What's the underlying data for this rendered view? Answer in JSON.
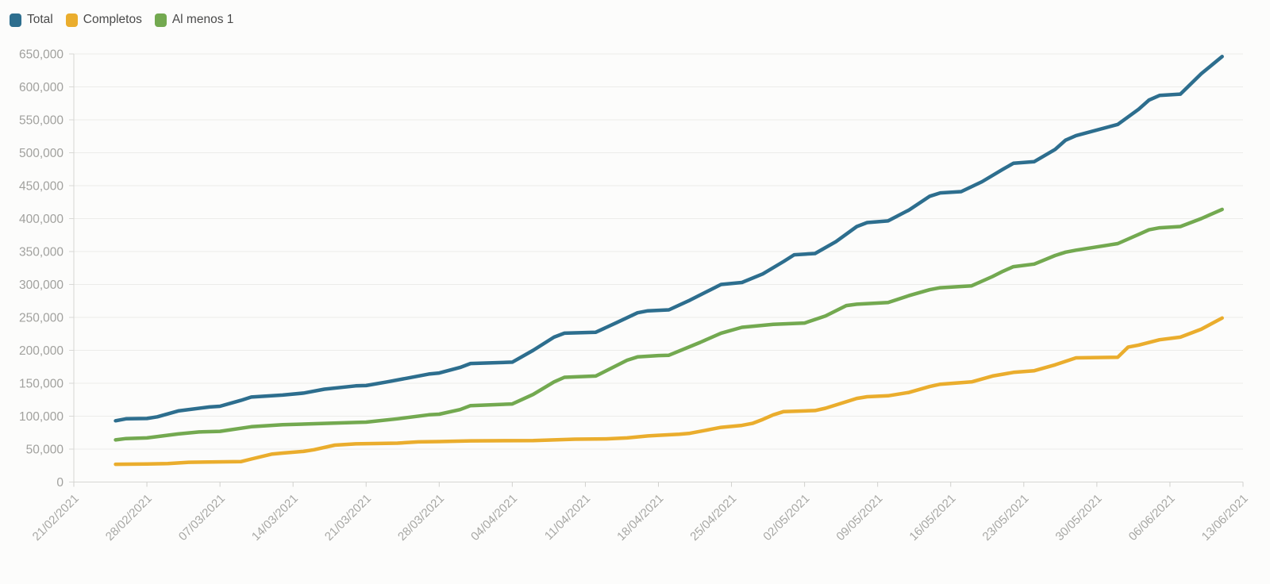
{
  "chart_data": {
    "type": "line",
    "title": "",
    "legend_position": "top-left",
    "background_color": "#fcfcfb",
    "grid": "horizontal",
    "x_axis": {
      "start_date": "21/02/2021",
      "end_date": "13/06/2021",
      "tick_interval_days": 7,
      "tick_labels": [
        "21/02/2021",
        "28/02/2021",
        "07/03/2021",
        "14/03/2021",
        "21/03/2021",
        "28/03/2021",
        "04/04/2021",
        "11/04/2021",
        "18/04/2021",
        "25/04/2021",
        "02/05/2021",
        "09/05/2021",
        "16/05/2021",
        "23/05/2021",
        "30/05/2021",
        "06/06/2021",
        "13/06/2021"
      ]
    },
    "y_axis": {
      "min": 0,
      "max": 650000,
      "step": 50000,
      "label_format": "#,###"
    },
    "day_zero_date": "25/02/2021",
    "series": [
      {
        "name": "Total",
        "color": "#2d6e8e",
        "points": [
          [
            0,
            93000
          ],
          [
            1,
            96000
          ],
          [
            3,
            96500
          ],
          [
            4,
            99000
          ],
          [
            6,
            108000
          ],
          [
            9,
            114000
          ],
          [
            10,
            115000
          ],
          [
            12,
            124000
          ],
          [
            13,
            129000
          ],
          [
            16,
            132000
          ],
          [
            18,
            135000
          ],
          [
            20,
            141000
          ],
          [
            23,
            146000
          ],
          [
            24,
            146500
          ],
          [
            26,
            152000
          ],
          [
            28,
            158000
          ],
          [
            30,
            164000
          ],
          [
            31,
            165500
          ],
          [
            33,
            174000
          ],
          [
            34,
            180000
          ],
          [
            38,
            182000
          ],
          [
            40,
            200000
          ],
          [
            42,
            220000
          ],
          [
            43,
            226000
          ],
          [
            46,
            227500
          ],
          [
            48,
            242000
          ],
          [
            50,
            257000
          ],
          [
            51,
            260000
          ],
          [
            53,
            261500
          ],
          [
            55,
            276000
          ],
          [
            57,
            292000
          ],
          [
            58,
            300000
          ],
          [
            60,
            303000
          ],
          [
            62,
            316000
          ],
          [
            64,
            335000
          ],
          [
            65,
            345000
          ],
          [
            67,
            347000
          ],
          [
            69,
            365000
          ],
          [
            71,
            388000
          ],
          [
            72,
            394000
          ],
          [
            74,
            396500
          ],
          [
            76,
            413000
          ],
          [
            78,
            434000
          ],
          [
            79,
            439000
          ],
          [
            81,
            441000
          ],
          [
            83,
            456000
          ],
          [
            85,
            475000
          ],
          [
            86,
            484000
          ],
          [
            88,
            486500
          ],
          [
            90,
            505000
          ],
          [
            91,
            519000
          ],
          [
            92,
            526000
          ],
          [
            96,
            543000
          ],
          [
            98,
            566000
          ],
          [
            99,
            580000
          ],
          [
            100,
            587000
          ],
          [
            102,
            589000
          ],
          [
            104,
            620000
          ],
          [
            106,
            646000
          ]
        ]
      },
      {
        "name": "Completos",
        "color": "#eaad2d",
        "points": [
          [
            0,
            27000
          ],
          [
            3,
            27500
          ],
          [
            5,
            28000
          ],
          [
            7,
            30000
          ],
          [
            12,
            31000
          ],
          [
            13,
            35000
          ],
          [
            15,
            42500
          ],
          [
            16,
            44000
          ],
          [
            18,
            46500
          ],
          [
            19,
            49000
          ],
          [
            21,
            56000
          ],
          [
            23,
            58000
          ],
          [
            27,
            59000
          ],
          [
            29,
            61000
          ],
          [
            31,
            61500
          ],
          [
            34,
            62500
          ],
          [
            40,
            63000
          ],
          [
            42,
            64000
          ],
          [
            44,
            65000
          ],
          [
            47,
            65500
          ],
          [
            49,
            67000
          ],
          [
            51,
            70000
          ],
          [
            52,
            71000
          ],
          [
            54,
            72500
          ],
          [
            55,
            74000
          ],
          [
            57,
            80000
          ],
          [
            58,
            83000
          ],
          [
            60,
            86000
          ],
          [
            61,
            89000
          ],
          [
            62,
            95000
          ],
          [
            63,
            102000
          ],
          [
            64,
            107000
          ],
          [
            66,
            108000
          ],
          [
            67,
            108500
          ],
          [
            68,
            112000
          ],
          [
            69,
            117000
          ],
          [
            71,
            127000
          ],
          [
            72,
            129500
          ],
          [
            74,
            131000
          ],
          [
            76,
            136000
          ],
          [
            78,
            145000
          ],
          [
            79,
            148500
          ],
          [
            82,
            152000
          ],
          [
            84,
            161000
          ],
          [
            86,
            166500
          ],
          [
            88,
            169000
          ],
          [
            90,
            178000
          ],
          [
            92,
            188500
          ],
          [
            96,
            189500
          ],
          [
            97,
            205000
          ],
          [
            98,
            208000
          ],
          [
            100,
            216000
          ],
          [
            102,
            220000
          ],
          [
            104,
            232000
          ],
          [
            106,
            249000
          ]
        ]
      },
      {
        "name": "Al menos 1",
        "color": "#73a950",
        "points": [
          [
            0,
            64000
          ],
          [
            1,
            66000
          ],
          [
            3,
            67000
          ],
          [
            6,
            73000
          ],
          [
            8,
            76000
          ],
          [
            10,
            77000
          ],
          [
            13,
            84000
          ],
          [
            16,
            87000
          ],
          [
            17,
            87500
          ],
          [
            20,
            89000
          ],
          [
            23,
            90500
          ],
          [
            24,
            91000
          ],
          [
            27,
            96000
          ],
          [
            30,
            102000
          ],
          [
            31,
            103000
          ],
          [
            33,
            110000
          ],
          [
            34,
            116000
          ],
          [
            38,
            118500
          ],
          [
            40,
            133000
          ],
          [
            42,
            152000
          ],
          [
            43,
            159000
          ],
          [
            46,
            161000
          ],
          [
            49,
            185000
          ],
          [
            50,
            190000
          ],
          [
            52,
            192000
          ],
          [
            53,
            192500
          ],
          [
            56,
            212000
          ],
          [
            58,
            226000
          ],
          [
            60,
            235000
          ],
          [
            63,
            239500
          ],
          [
            66,
            241500
          ],
          [
            68,
            252000
          ],
          [
            70,
            268000
          ],
          [
            71,
            270000
          ],
          [
            74,
            272500
          ],
          [
            76,
            283000
          ],
          [
            78,
            292000
          ],
          [
            79,
            295000
          ],
          [
            82,
            298000
          ],
          [
            84,
            312000
          ],
          [
            85,
            320000
          ],
          [
            86,
            327000
          ],
          [
            88,
            331000
          ],
          [
            90,
            344000
          ],
          [
            91,
            349000
          ],
          [
            92,
            352000
          ],
          [
            96,
            362000
          ],
          [
            98,
            376000
          ],
          [
            99,
            383000
          ],
          [
            100,
            386000
          ],
          [
            102,
            388000
          ],
          [
            104,
            400000
          ],
          [
            106,
            414000
          ]
        ]
      }
    ]
  }
}
